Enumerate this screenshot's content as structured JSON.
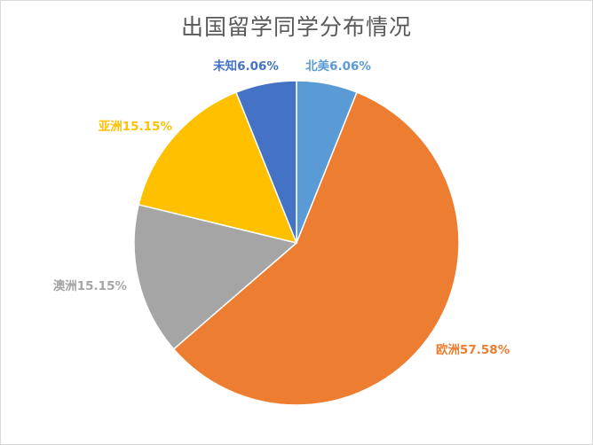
{
  "chart_data": {
    "type": "pie",
    "title": "出国留学同学分布情况",
    "slices": [
      {
        "name": "北美",
        "value": 6.06,
        "color": "#5b9bd5",
        "label": "北美6.06%"
      },
      {
        "name": "欧洲",
        "value": 57.58,
        "color": "#ed7d31",
        "label": "欧洲57.58%"
      },
      {
        "name": "澳洲",
        "value": 15.15,
        "color": "#a5a5a5",
        "label": "澳洲15.15%"
      },
      {
        "name": "亚洲",
        "value": 15.15,
        "color": "#ffc000",
        "label": "亚洲15.15%"
      },
      {
        "name": "未知",
        "value": 6.06,
        "color": "#4472c4",
        "label": "未知6.06%"
      }
    ],
    "legend": "none",
    "labels": "outside"
  }
}
